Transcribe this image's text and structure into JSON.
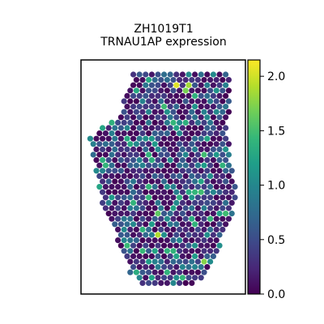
{
  "chart_data": {
    "type": "scatter",
    "title": "ZH1019T1",
    "subtitle": "TRNAU1AP expression",
    "xlabel": "",
    "ylabel": "",
    "grid": false,
    "colormap": "viridis",
    "colorbar": {
      "min": 0.0,
      "max": 2.15,
      "ticks": [
        0.0,
        0.5,
        1.0,
        1.5,
        2.0
      ],
      "tick_labels": [
        "0.0",
        "0.5",
        "1.0",
        "1.5",
        "2.0"
      ]
    },
    "color_scale": [
      "#440154",
      "#482878",
      "#3e4989",
      "#31688e",
      "#26828e",
      "#1f9e89",
      "#35b779",
      "#6ece58",
      "#b5de2b",
      "#fde725"
    ],
    "highlights": [
      {
        "row": 2,
        "col": 7,
        "value": 2.05
      },
      {
        "row": 2,
        "col": 9,
        "value": 1.85
      },
      {
        "row": 3,
        "col": 9,
        "value": 1.7
      },
      {
        "row": 26,
        "col": 8,
        "value": 1.6
      },
      {
        "row": 30,
        "col": 6,
        "value": 1.9
      },
      {
        "row": 37,
        "col": 13,
        "value": 2.1
      },
      {
        "row": 35,
        "col": 12,
        "value": 1.75
      },
      {
        "row": 24,
        "col": 5,
        "value": 1.4
      },
      {
        "row": 22,
        "col": 14,
        "value": 1.3
      },
      {
        "row": 31,
        "col": 20,
        "value": 1.35
      },
      {
        "row": 10,
        "col": 12,
        "value": 1.25
      }
    ]
  }
}
